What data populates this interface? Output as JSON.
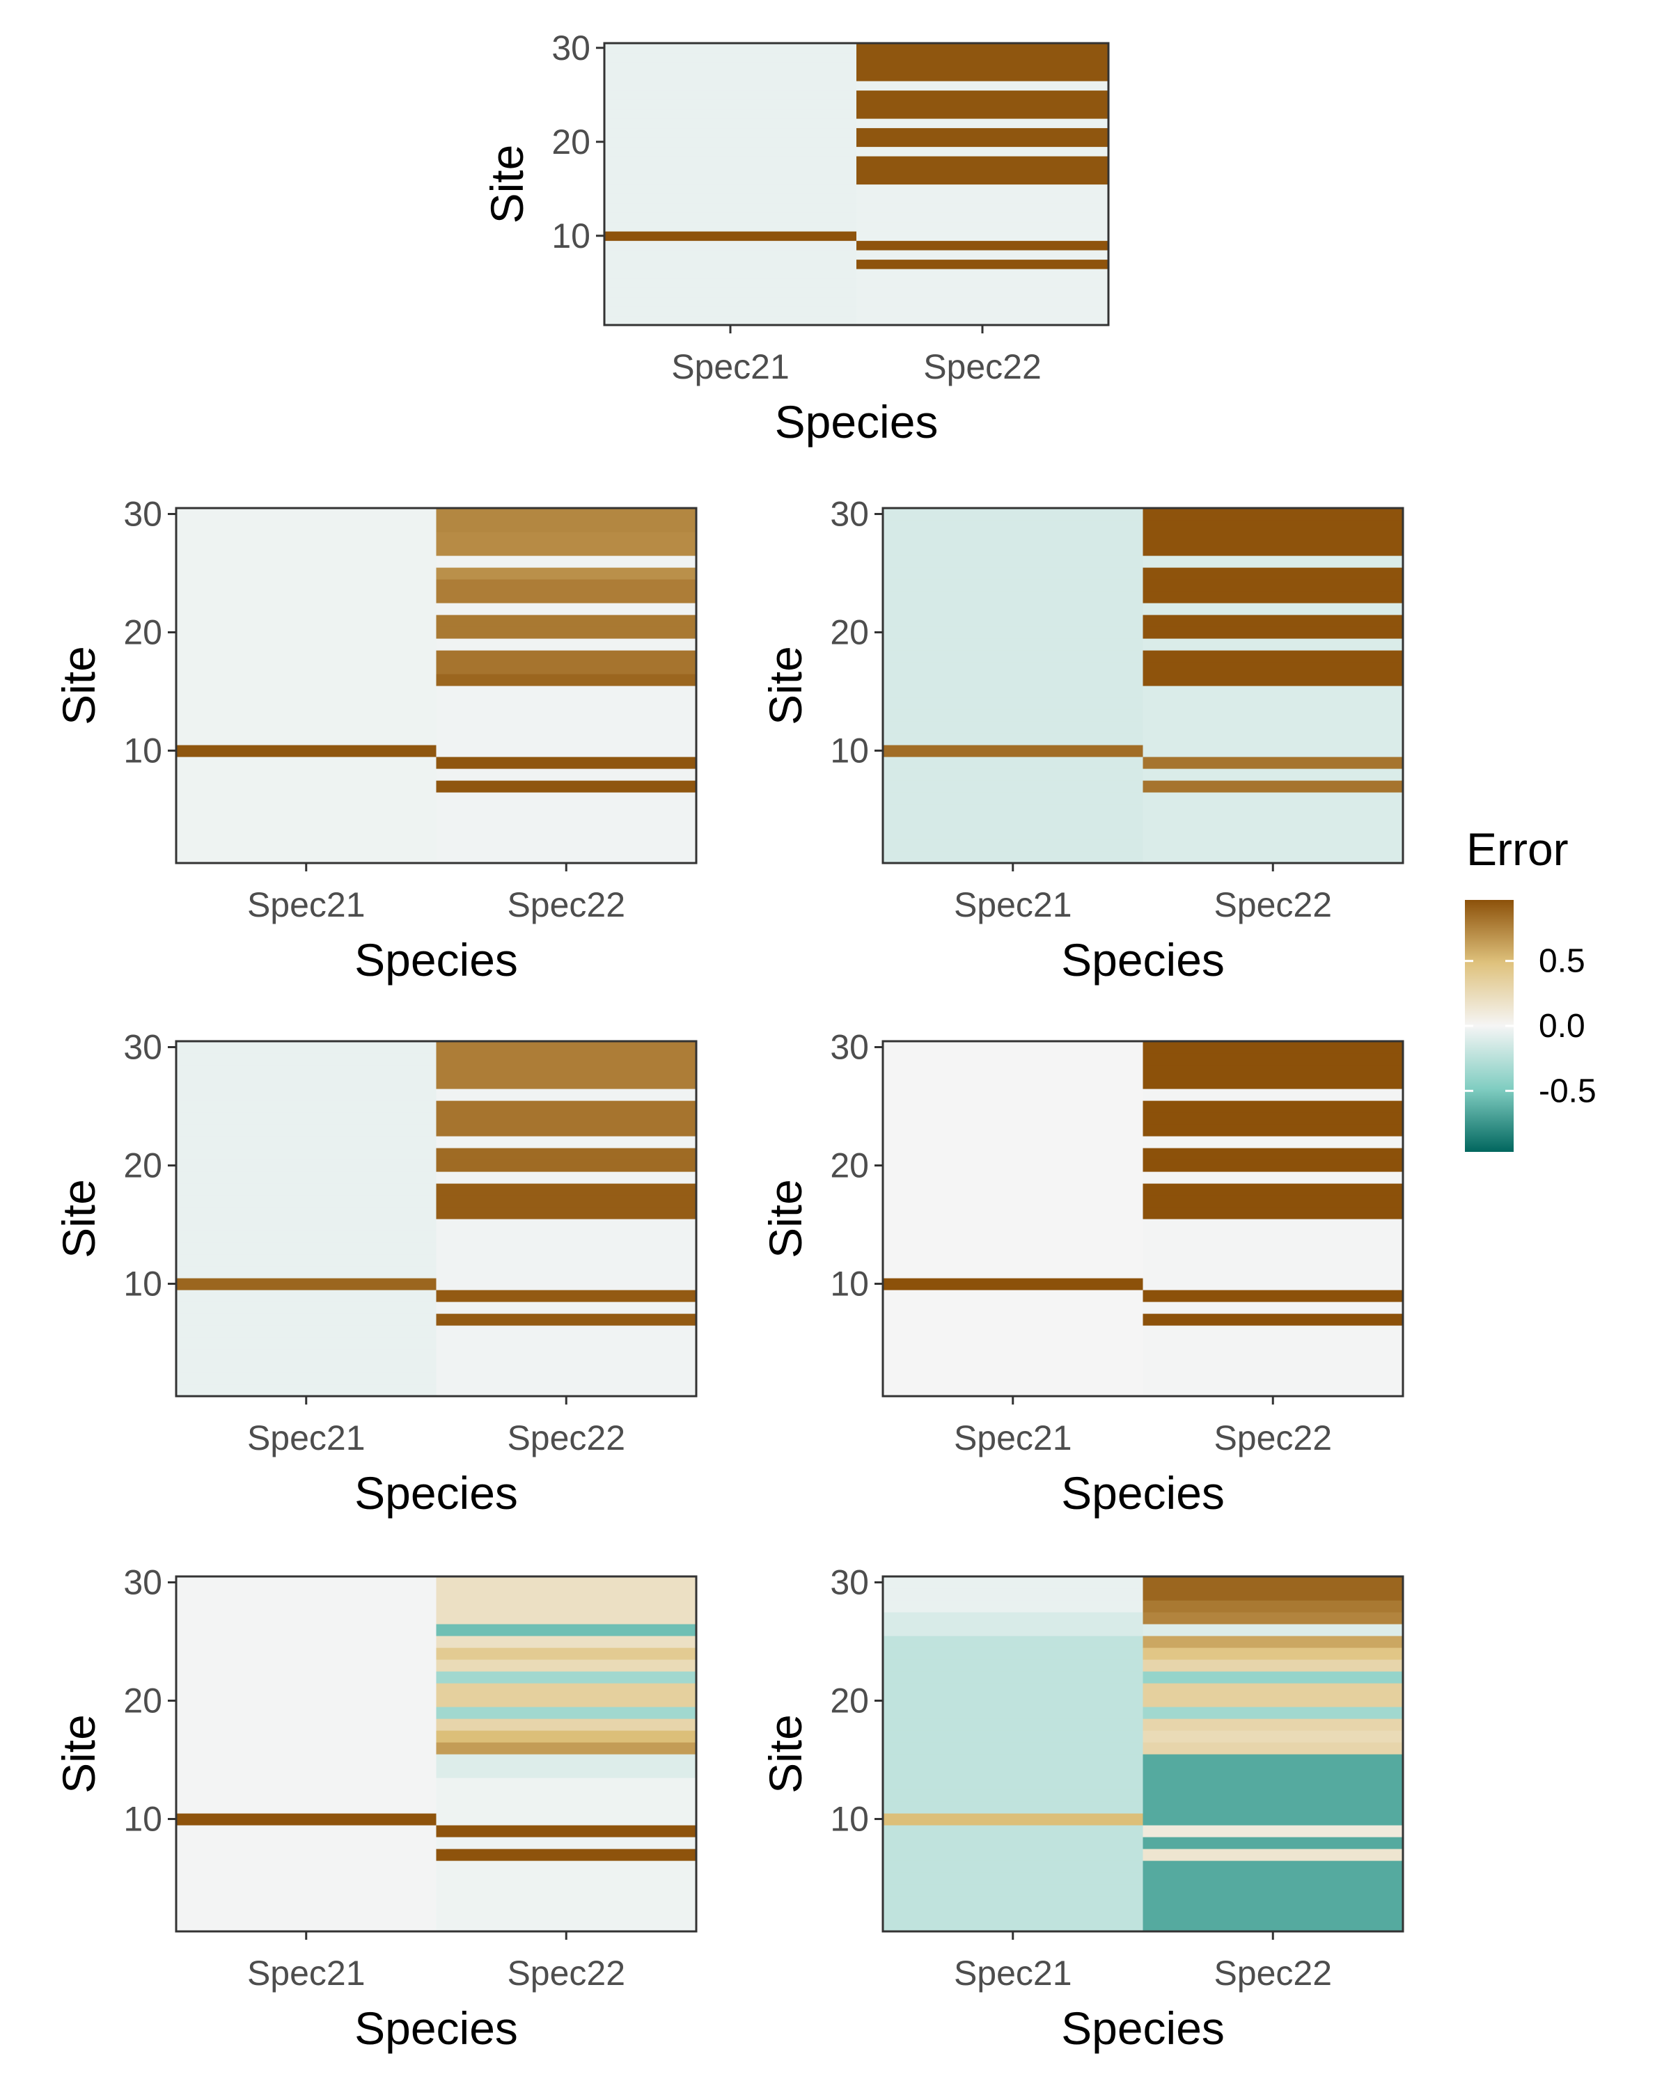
{
  "legend": {
    "title": "Error",
    "ticks": [
      0.5,
      0.0,
      -0.5
    ],
    "tick_labels": [
      "0.5",
      "0.0",
      "-0.5"
    ],
    "limits": [
      -0.97,
      0.97
    ],
    "colors": {
      "low": "#01665e",
      "mid_low": "#80cdc1",
      "mid": "#f5f5f5",
      "mid_high": "#dfc27d",
      "high": "#8c510a"
    }
  },
  "chart_data": [
    {
      "type": "heatmap",
      "xlabel": "Species",
      "ylabel": "Site",
      "categories": [
        "Spec21",
        "Spec22"
      ],
      "y_ticks": [
        10,
        20,
        30
      ],
      "ylim": [
        0.5,
        30.5
      ],
      "columns": [
        {
          "species": "Spec21",
          "base": -0.05,
          "overrides": [
            {
              "sites": [
                10
              ],
              "value": 0.96
            }
          ]
        },
        {
          "species": "Spec22",
          "base": -0.04,
          "overrides": [
            {
              "sites": [
                7,
                9
              ],
              "value": 0.96
            },
            {
              "sites": [
                16,
                17,
                18,
                20,
                21,
                23,
                24,
                25,
                27,
                28,
                29,
                30
              ],
              "value": 0.95
            }
          ]
        }
      ]
    },
    {
      "type": "heatmap",
      "xlabel": "Species",
      "ylabel": "Site",
      "categories": [
        "Spec21",
        "Spec22"
      ],
      "y_ticks": [
        10,
        20,
        30
      ],
      "ylim": [
        0.5,
        30.5
      ],
      "columns": [
        {
          "species": "Spec21",
          "base": -0.03,
          "overrides": [
            {
              "sites": [
                10
              ],
              "value": 0.95
            }
          ]
        },
        {
          "species": "Spec22",
          "base": -0.02,
          "overrides": [
            {
              "sites": [
                7,
                9
              ],
              "value": 0.95
            },
            {
              "sites": [
                16
              ],
              "value": 0.88
            },
            {
              "sites": [
                17,
                18
              ],
              "value": 0.82
            },
            {
              "sites": [
                20,
                21
              ],
              "value": 0.8
            },
            {
              "sites": [
                23,
                24
              ],
              "value": 0.78
            },
            {
              "sites": [
                25
              ],
              "value": 0.7
            },
            {
              "sites": [
                27,
                28
              ],
              "value": 0.72
            },
            {
              "sites": [
                29,
                30
              ],
              "value": 0.74
            }
          ]
        }
      ]
    },
    {
      "type": "heatmap",
      "xlabel": "Species",
      "ylabel": "Site",
      "categories": [
        "Spec21",
        "Spec22"
      ],
      "y_ticks": [
        10,
        20,
        30
      ],
      "ylim": [
        0.5,
        30.5
      ],
      "columns": [
        {
          "species": "Spec21",
          "base": -0.13,
          "overrides": [
            {
              "sites": [
                10
              ],
              "value": 0.85
            }
          ]
        },
        {
          "species": "Spec22",
          "base": -0.11,
          "overrides": [
            {
              "sites": [
                7,
                9
              ],
              "value": 0.82
            },
            {
              "sites": [
                16,
                17,
                18,
                20,
                21,
                23,
                24,
                25,
                27,
                28,
                29,
                30
              ],
              "value": 0.96
            }
          ]
        }
      ]
    },
    {
      "type": "heatmap",
      "xlabel": "Species",
      "ylabel": "Site",
      "categories": [
        "Spec21",
        "Spec22"
      ],
      "y_ticks": [
        10,
        20,
        30
      ],
      "ylim": [
        0.5,
        30.5
      ],
      "columns": [
        {
          "species": "Spec21",
          "base": -0.05,
          "overrides": [
            {
              "sites": [
                10
              ],
              "value": 0.88
            }
          ]
        },
        {
          "species": "Spec22",
          "base": -0.02,
          "overrides": [
            {
              "sites": [
                7,
                9
              ],
              "value": 0.93
            },
            {
              "sites": [
                16,
                17,
                18
              ],
              "value": 0.92
            },
            {
              "sites": [
                20,
                21
              ],
              "value": 0.86
            },
            {
              "sites": [
                23,
                24,
                25
              ],
              "value": 0.82
            },
            {
              "sites": [
                27,
                28,
                29,
                30
              ],
              "value": 0.78
            }
          ]
        }
      ]
    },
    {
      "type": "heatmap",
      "xlabel": "Species",
      "ylabel": "Site",
      "categories": [
        "Spec21",
        "Spec22"
      ],
      "y_ticks": [
        10,
        20,
        30
      ],
      "ylim": [
        0.5,
        30.5
      ],
      "columns": [
        {
          "species": "Spec21",
          "base": 0.0,
          "overrides": [
            {
              "sites": [
                10
              ],
              "value": 0.97
            }
          ]
        },
        {
          "species": "Spec22",
          "base": -0.01,
          "overrides": [
            {
              "sites": [
                7,
                9
              ],
              "value": 0.97
            },
            {
              "sites": [
                16,
                17,
                18,
                20,
                21,
                23,
                24,
                25,
                27,
                28,
                29,
                30
              ],
              "value": 0.97
            }
          ]
        }
      ]
    },
    {
      "type": "heatmap",
      "xlabel": "Species",
      "ylabel": "Site",
      "categories": [
        "Spec21",
        "Spec22"
      ],
      "y_ticks": [
        10,
        20,
        30
      ],
      "ylim": [
        0.5,
        30.5
      ],
      "columns": [
        {
          "species": "Spec21",
          "base": -0.01,
          "overrides": [
            {
              "sites": [
                10
              ],
              "value": 0.96
            }
          ]
        },
        {
          "species": "Spec22",
          "base": -0.03,
          "overrides": [
            {
              "sites": [
                7,
                9
              ],
              "value": 0.96
            },
            {
              "sites": [
                14,
                15
              ],
              "value": -0.1
            },
            {
              "sites": [
                16
              ],
              "value": 0.65
            },
            {
              "sites": [
                17
              ],
              "value": 0.5
            },
            {
              "sites": [
                18
              ],
              "value": 0.3
            },
            {
              "sites": [
                19
              ],
              "value": -0.35
            },
            {
              "sites": [
                20,
                21
              ],
              "value": 0.35
            },
            {
              "sites": [
                22
              ],
              "value": -0.35
            },
            {
              "sites": [
                23
              ],
              "value": 0.25
            },
            {
              "sites": [
                24
              ],
              "value": 0.4
            },
            {
              "sites": [
                25
              ],
              "value": 0.2
            },
            {
              "sites": [
                26
              ],
              "value": -0.55
            },
            {
              "sites": [
                27,
                28,
                29,
                30
              ],
              "value": 0.2
            }
          ]
        }
      ]
    },
    {
      "type": "heatmap",
      "xlabel": "Species",
      "ylabel": "Site",
      "categories": [
        "Spec21",
        "Spec22"
      ],
      "y_ticks": [
        10,
        20,
        30
      ],
      "ylim": [
        0.5,
        30.5
      ],
      "columns": [
        {
          "species": "Spec21",
          "base": -0.22,
          "overrides": [
            {
              "sites": [
                10
              ],
              "value": 0.5
            },
            {
              "sites": [
                26,
                27
              ],
              "value": -0.12
            },
            {
              "sites": [
                28,
                29,
                30
              ],
              "value": -0.05
            }
          ]
        },
        {
          "species": "Spec22",
          "base": -0.65,
          "overrides": [
            {
              "sites": [
                7
              ],
              "value": 0.15
            },
            {
              "sites": [
                9
              ],
              "value": 0.1
            },
            {
              "sites": [
                16
              ],
              "value": 0.3
            },
            {
              "sites": [
                17
              ],
              "value": 0.25
            },
            {
              "sites": [
                18
              ],
              "value": 0.3
            },
            {
              "sites": [
                19
              ],
              "value": -0.35
            },
            {
              "sites": [
                20,
                21
              ],
              "value": 0.35
            },
            {
              "sites": [
                22
              ],
              "value": -0.4
            },
            {
              "sites": [
                23
              ],
              "value": 0.3
            },
            {
              "sites": [
                24
              ],
              "value": 0.45
            },
            {
              "sites": [
                25
              ],
              "value": 0.6
            },
            {
              "sites": [
                26
              ],
              "value": -0.1
            },
            {
              "sites": [
                27
              ],
              "value": 0.75
            },
            {
              "sites": [
                28
              ],
              "value": 0.8
            },
            {
              "sites": [
                29,
                30
              ],
              "value": 0.88
            }
          ]
        }
      ]
    }
  ]
}
